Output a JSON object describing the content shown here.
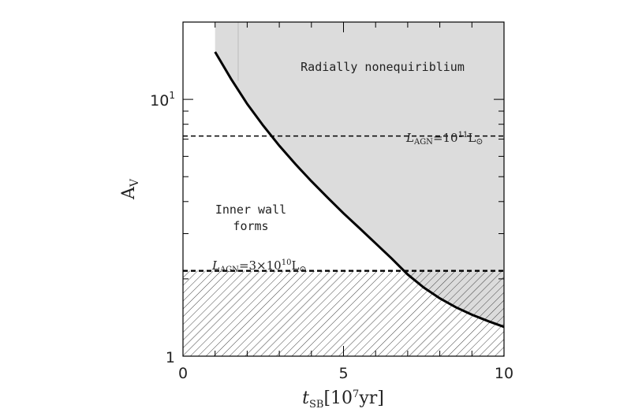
{
  "chart_data": {
    "type": "line",
    "xlabel": {
      "italic": "t",
      "sub": "SB",
      "rest": "[10",
      "sup": "7",
      "end": "yr]"
    },
    "ylabel": {
      "main": "A",
      "sub": "V"
    },
    "xlim": [
      0,
      10
    ],
    "ylim": [
      1,
      20
    ],
    "yscale": "log",
    "x_ticks": [
      0,
      5,
      10
    ],
    "x_tick_labels": [
      "0",
      "5",
      "10"
    ],
    "y_tick_labels": [
      {
        "value": 1,
        "base": "1",
        "exp": ""
      },
      {
        "value": 10,
        "base": "10",
        "exp": "1"
      }
    ],
    "series": [
      {
        "x": [
          1.0,
          1.5,
          2.0,
          2.5,
          3.0,
          3.5,
          4.0,
          4.5,
          5.0,
          5.5,
          6.0,
          6.5,
          7.0,
          7.5,
          8.0,
          8.5,
          9.0,
          9.5,
          10.0
        ],
        "y": [
          15.3,
          12.0,
          9.6,
          7.9,
          6.6,
          5.6,
          4.8,
          4.15,
          3.6,
          3.15,
          2.75,
          2.4,
          2.08,
          1.85,
          1.68,
          1.55,
          1.45,
          1.37,
          1.3
        ]
      }
    ],
    "hlines": [
      {
        "y": 7.2,
        "label_prefix": "L",
        "label_sub": "AGN",
        "label_eq": "=10",
        "label_sup": "11",
        "label_unit": "L",
        "label_sun": "⊙"
      },
      {
        "y": 2.15,
        "label_prefix": "L",
        "label_sub": "AGN",
        "label_eq": "=3×10",
        "label_sup": "10",
        "label_unit": "L",
        "label_sun": "⊙"
      }
    ],
    "annotations": {
      "shaded_region": "Radially nonequiriblium",
      "inner_wall_line1": "Inner wall",
      "inner_wall_line2": "forms"
    },
    "shading": {
      "gray": "#dcdcdc",
      "hatch_below_y": 2.15,
      "hatch_color": "#444444"
    }
  }
}
